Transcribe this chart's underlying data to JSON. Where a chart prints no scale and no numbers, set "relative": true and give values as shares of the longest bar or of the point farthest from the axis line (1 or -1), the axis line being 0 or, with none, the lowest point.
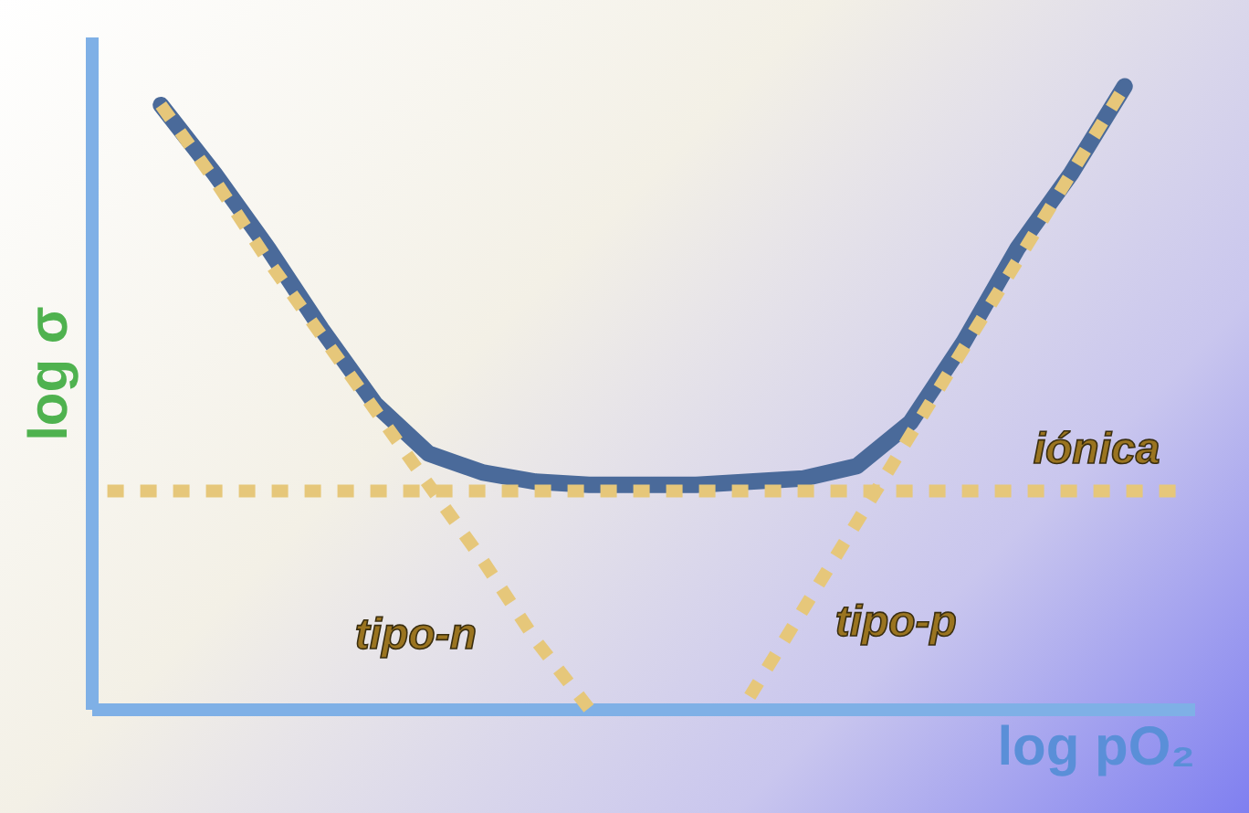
{
  "chart_data": {
    "type": "line",
    "relative": true,
    "xlabel": "log pO₂",
    "ylabel": "log σ",
    "categories": [
      null,
      null,
      null,
      null,
      null,
      null,
      null,
      null,
      null,
      null,
      null,
      null,
      null,
      null,
      null,
      null,
      null,
      null,
      null,
      null,
      null
    ],
    "series": [
      {
        "color": "#4a6a9a",
        "line_style": "solid",
        "values": [
          null,
          0.97,
          0.86,
          0.74,
          0.61,
          0.49,
          0.41,
          0.38,
          0.365,
          0.36,
          0.36,
          0.36,
          0.365,
          0.37,
          0.39,
          0.46,
          0.59,
          0.74,
          0.86,
          1,
          null
        ]
      },
      {
        "name": "iónica",
        "color": "#e6c77a",
        "line_style": "dotted",
        "values": [
          0.35,
          0.35,
          0.35,
          0.35,
          0.35,
          0.35,
          0.35,
          0.35,
          0.35,
          0.35,
          0.35,
          0.35,
          0.35,
          0.35,
          0.35,
          0.35,
          0.35,
          0.35,
          0.35,
          0.35,
          0.35
        ]
      },
      {
        "name": "tipo-n",
        "color": "#e6c77a",
        "line_style": "dotted",
        "values": [
          null,
          0.97,
          0.85,
          0.72,
          0.6,
          0.48,
          0.36,
          0.24,
          0.11,
          0,
          null,
          null,
          null,
          null,
          null,
          null,
          null,
          null,
          null,
          null,
          null
        ]
      },
      {
        "name": "tipo-p",
        "color": "#e6c77a",
        "line_style": "dotted",
        "values": [
          null,
          null,
          null,
          null,
          null,
          null,
          null,
          null,
          null,
          null,
          null,
          null,
          0.02,
          0.16,
          0.3,
          0.44,
          0.58,
          0.72,
          0.86,
          1,
          null
        ]
      }
    ]
  }
}
